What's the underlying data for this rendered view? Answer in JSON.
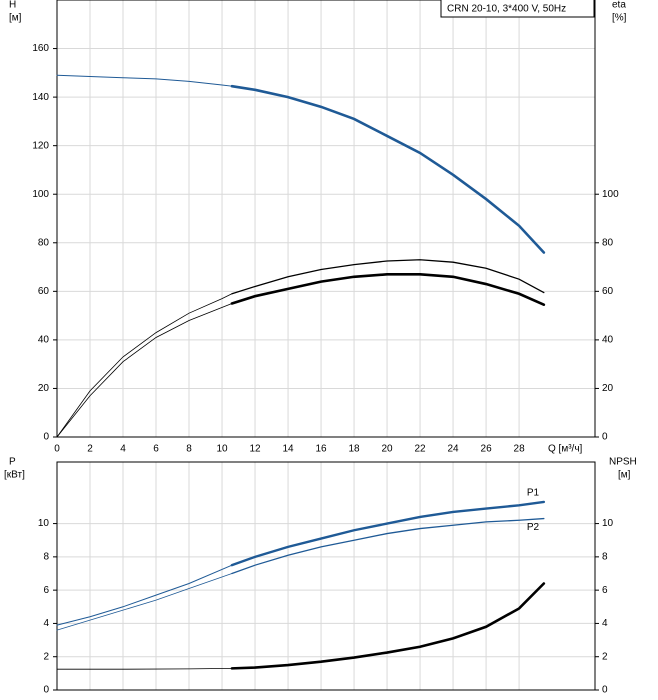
{
  "chart_data": [
    {
      "type": "line",
      "annotation": "CRN 20-10, 3*400 V, 50Hz",
      "ylabel": [
        "H",
        "[м]"
      ],
      "y2label": [
        "eta",
        "[%]"
      ],
      "xlabel": "Q [м³/ч]",
      "xlim": [
        0,
        32.6
      ],
      "xticks": [
        0,
        2,
        4,
        6,
        8,
        10,
        12,
        14,
        16,
        18,
        20,
        22,
        24,
        26,
        28
      ],
      "ylim": [
        0,
        180
      ],
      "yticks": [
        0,
        20,
        40,
        60,
        80,
        100,
        120,
        140,
        160
      ],
      "y2lim": [
        0,
        180
      ],
      "y2ticks": [
        0,
        20,
        40,
        60,
        80,
        100
      ],
      "grid": true,
      "series": [
        {
          "color": "#1f5a96",
          "width": 1,
          "x": [
            0,
            2,
            4,
            6,
            8,
            10,
            10.6
          ],
          "values": [
            149,
            148.5,
            148,
            147.5,
            146.5,
            145,
            144.5
          ]
        },
        {
          "color": "#1f5a96",
          "width": 2.6,
          "x": [
            10.6,
            12,
            14,
            16,
            18,
            20,
            22,
            24,
            26,
            28,
            29.5
          ],
          "values": [
            144.5,
            143,
            140,
            136,
            131,
            124,
            117,
            108,
            98,
            87,
            76
          ]
        },
        {
          "color": "#000000",
          "width": 0.8,
          "axis": "y2",
          "x": [
            0,
            2,
            4,
            6,
            8,
            10,
            10.6
          ],
          "values": [
            0,
            19,
            33,
            43,
            51,
            57,
            59
          ]
        },
        {
          "color": "#000000",
          "width": 1.3,
          "axis": "y2",
          "x": [
            10.6,
            12,
            14,
            16,
            18,
            20,
            22,
            24,
            26,
            28,
            29.5
          ],
          "values": [
            59,
            62,
            66,
            69,
            71,
            72.5,
            73,
            72,
            69.5,
            65,
            59.5
          ]
        },
        {
          "color": "#000000",
          "width": 0.8,
          "axis": "y2",
          "x": [
            0,
            2,
            4,
            6,
            8,
            10.6
          ],
          "values": [
            0,
            17,
            31,
            41,
            48,
            55
          ]
        },
        {
          "color": "#000000",
          "width": 2.6,
          "axis": "y2",
          "x": [
            10.6,
            12,
            14,
            16,
            18,
            20,
            22,
            24,
            26,
            28,
            29.5
          ],
          "values": [
            55,
            58,
            61,
            64,
            66,
            67,
            67,
            66,
            63,
            59,
            54.5
          ]
        }
      ]
    },
    {
      "type": "line",
      "ylabel": [
        "P",
        "[кВт]"
      ],
      "y2label": [
        "NPSH",
        "[м]"
      ],
      "xlim": [
        0,
        32.6
      ],
      "xticks": [
        0,
        2,
        4,
        6,
        8,
        10,
        12,
        14,
        16,
        18,
        20,
        22,
        24,
        26,
        28
      ],
      "ylim": [
        0,
        13.7
      ],
      "yticks": [
        0,
        2,
        4,
        6,
        8,
        10
      ],
      "y2lim": [
        0,
        13.7
      ],
      "y2ticks": [
        0,
        2,
        4,
        6,
        8,
        10
      ],
      "grid": true,
      "series": [
        {
          "color": "#1f5a96",
          "width": 1,
          "x": [
            0,
            2,
            4,
            6,
            8,
            10.6
          ],
          "values": [
            3.9,
            4.4,
            5.0,
            5.7,
            6.4,
            7.5
          ]
        },
        {
          "name": "P1",
          "color": "#1f5a96",
          "width": 2.4,
          "x": [
            10.6,
            12,
            14,
            16,
            18,
            20,
            22,
            24,
            26,
            28,
            29.5
          ],
          "values": [
            7.5,
            8.0,
            8.6,
            9.1,
            9.6,
            10.0,
            10.4,
            10.7,
            10.9,
            11.1,
            11.3
          ]
        },
        {
          "color": "#1f5a96",
          "width": 0.8,
          "x": [
            0,
            2,
            4,
            6,
            8,
            10.6
          ],
          "values": [
            3.6,
            4.2,
            4.8,
            5.4,
            6.1,
            7.0
          ]
        },
        {
          "name": "P2",
          "color": "#1f5a96",
          "width": 1.3,
          "x": [
            10.6,
            12,
            14,
            16,
            18,
            20,
            22,
            24,
            26,
            28,
            29.5
          ],
          "values": [
            7.0,
            7.5,
            8.1,
            8.6,
            9.0,
            9.4,
            9.7,
            9.9,
            10.1,
            10.2,
            10.3
          ]
        },
        {
          "color": "#000000",
          "width": 0.8,
          "axis": "y2",
          "x": [
            0,
            4,
            8,
            10.6
          ],
          "values": [
            1.25,
            1.25,
            1.27,
            1.3
          ]
        },
        {
          "color": "#000000",
          "width": 2.6,
          "axis": "y2",
          "x": [
            10.6,
            12,
            14,
            16,
            18,
            20,
            22,
            24,
            26,
            28,
            29.5
          ],
          "values": [
            1.3,
            1.35,
            1.5,
            1.7,
            1.95,
            2.25,
            2.6,
            3.1,
            3.8,
            4.9,
            6.4
          ]
        }
      ]
    }
  ]
}
